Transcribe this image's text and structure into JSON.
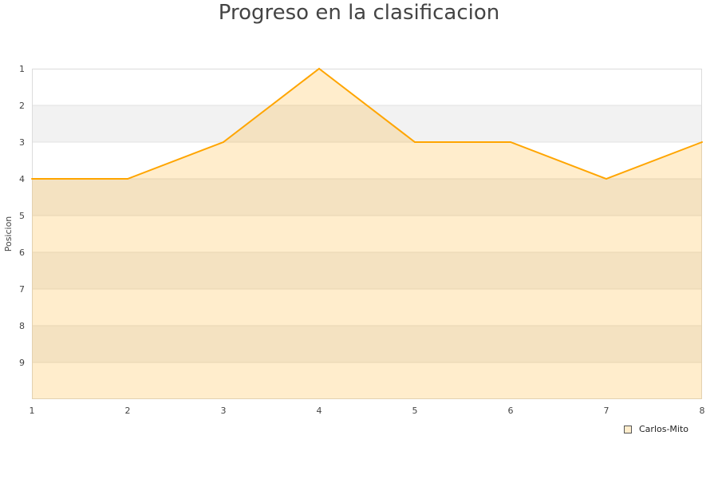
{
  "chart_data": {
    "type": "area",
    "title": "Progreso en la clasificacion",
    "xlabel": "",
    "ylabel": "Posicion",
    "x": [
      1,
      2,
      3,
      4,
      5,
      6,
      7,
      8
    ],
    "xlim": [
      1,
      8
    ],
    "ylim": [
      1,
      10
    ],
    "y_inverted": true,
    "y_ticks": [
      1,
      2,
      3,
      4,
      5,
      6,
      7,
      8,
      9
    ],
    "grid": "alternating horizontal bands",
    "legend_position": "bottom-right",
    "series": [
      {
        "name": "Carlos-Mito",
        "values": [
          4,
          4,
          3,
          1,
          3,
          3,
          4,
          3
        ],
        "color": "#ffa500"
      }
    ]
  }
}
